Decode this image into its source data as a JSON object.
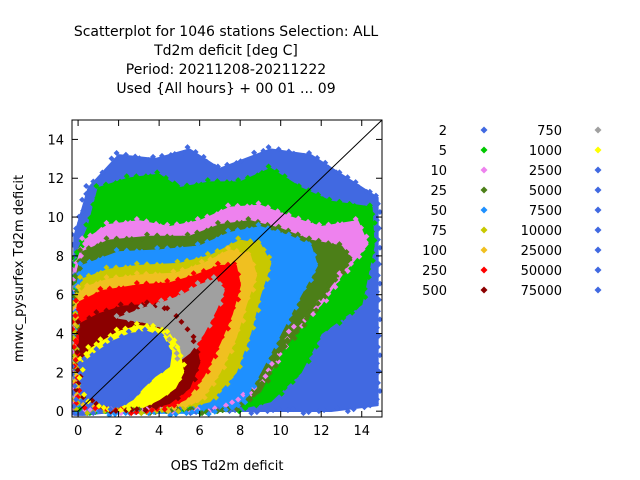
{
  "chart_data": {
    "type": "scatter",
    "title_lines": [
      "Scatterplot for 1046 stations Selection: ALL",
      "Td2m deficit [deg C]",
      "Period: 20211208-20211222",
      "Used {All hours} + 00 01 ... 09"
    ],
    "xlabel": "OBS Td2m deficit",
    "ylabel": "mnwc_pysurfex Td2m deficit",
    "xlim": [
      -0.3,
      15
    ],
    "ylim": [
      -0.3,
      15
    ],
    "xticks": [
      0,
      2,
      4,
      6,
      8,
      10,
      12,
      14
    ],
    "yticks": [
      0,
      2,
      4,
      6,
      8,
      10,
      12,
      14
    ],
    "diagonal": true,
    "legend_placement": "right",
    "legend": [
      {
        "label": "2",
        "color": "#4169e1"
      },
      {
        "label": "5",
        "color": "#00c800"
      },
      {
        "label": "10",
        "color": "#ee82ee"
      },
      {
        "label": "25",
        "color": "#4c7f18"
      },
      {
        "label": "50",
        "color": "#1e90ff"
      },
      {
        "label": "75",
        "color": "#c8c800"
      },
      {
        "label": "100",
        "color": "#f0c020"
      },
      {
        "label": "250",
        "color": "#ff0000"
      },
      {
        "label": "500",
        "color": "#8b0000"
      },
      {
        "label": "750",
        "color": "#a0a0a0"
      },
      {
        "label": "1000",
        "color": "#ffff00"
      },
      {
        "label": "2500",
        "color": "#4169e1"
      },
      {
        "label": "5000",
        "color": "#4169e1"
      },
      {
        "label": "7500",
        "color": "#4169e1"
      },
      {
        "label": "10000",
        "color": "#4169e1"
      },
      {
        "label": "25000",
        "color": "#4169e1"
      },
      {
        "label": "50000",
        "color": "#4169e1"
      },
      {
        "label": "75000",
        "color": "#4169e1"
      }
    ],
    "density_regions": [
      {
        "class": "2",
        "color": "#4169e1",
        "polygon": [
          [
            2.0,
            13.2
          ],
          [
            3.8,
            13.0
          ],
          [
            5.5,
            13.5
          ],
          [
            7.0,
            12.5
          ],
          [
            9.5,
            13.5
          ],
          [
            11.5,
            13.2
          ],
          [
            13.0,
            12.2
          ],
          [
            14.8,
            11.0
          ],
          [
            14.8,
            0.3
          ],
          [
            12.5,
            0.0
          ],
          [
            10.0,
            0.0
          ],
          [
            7.0,
            0.0
          ],
          [
            4.0,
            0.0
          ],
          [
            1.0,
            0.0
          ],
          [
            -0.2,
            0.0
          ],
          [
            -0.2,
            9.0
          ],
          [
            0.5,
            11.5
          ]
        ]
      },
      {
        "class": "5",
        "color": "#00c800",
        "polygon": [
          [
            1.0,
            11.5
          ],
          [
            2.5,
            12.0
          ],
          [
            4.0,
            12.2
          ],
          [
            5.0,
            11.5
          ],
          [
            6.5,
            11.8
          ],
          [
            8.0,
            11.8
          ],
          [
            9.5,
            12.5
          ],
          [
            11.0,
            11.5
          ],
          [
            12.5,
            10.8
          ],
          [
            14.5,
            10.5
          ],
          [
            14.6,
            8.5
          ],
          [
            14.0,
            5.5
          ],
          [
            12.0,
            4.0
          ],
          [
            11.0,
            2.0
          ],
          [
            9.5,
            0.5
          ],
          [
            7.5,
            0.0
          ],
          [
            4.5,
            0.0
          ],
          [
            2.0,
            0.0
          ],
          [
            -0.2,
            0.0
          ],
          [
            -0.2,
            7.8
          ],
          [
            0.5,
            9.5
          ]
        ]
      },
      {
        "class": "10",
        "color": "#ee82ee",
        "polygon": [
          [
            0.3,
            8.8
          ],
          [
            1.5,
            9.6
          ],
          [
            3.0,
            9.8
          ],
          [
            4.5,
            9.5
          ],
          [
            6.0,
            9.8
          ],
          [
            7.5,
            10.5
          ],
          [
            9.0,
            10.6
          ],
          [
            10.5,
            10.0
          ],
          [
            12.0,
            9.5
          ],
          [
            13.8,
            9.8
          ],
          [
            14.3,
            8.6
          ],
          [
            13.0,
            7.0
          ],
          [
            12.0,
            5.5
          ],
          [
            10.5,
            4.0
          ],
          [
            9.5,
            2.0
          ],
          [
            8.0,
            0.5
          ],
          [
            6.0,
            0.0
          ],
          [
            3.5,
            0.0
          ],
          [
            1.0,
            0.0
          ],
          [
            -0.2,
            0.0
          ],
          [
            -0.2,
            7.2
          ]
        ]
      },
      {
        "class": "25",
        "color": "#4c7f18",
        "polygon": [
          [
            0.2,
            8.2
          ],
          [
            1.5,
            8.8
          ],
          [
            3.5,
            9.0
          ],
          [
            5.5,
            9.0
          ],
          [
            7.0,
            9.6
          ],
          [
            8.5,
            9.8
          ],
          [
            10.0,
            9.4
          ],
          [
            11.5,
            8.8
          ],
          [
            13.0,
            8.5
          ],
          [
            13.5,
            7.8
          ],
          [
            12.5,
            6.5
          ],
          [
            11.5,
            5.0
          ],
          [
            10.0,
            3.0
          ],
          [
            9.0,
            1.0
          ],
          [
            7.5,
            0.0
          ],
          [
            5.0,
            0.0
          ],
          [
            2.0,
            0.0
          ],
          [
            0.0,
            0.0
          ],
          [
            -0.2,
            6.5
          ]
        ]
      },
      {
        "class": "50",
        "color": "#1e90ff",
        "polygon": [
          [
            0.2,
            7.5
          ],
          [
            2.0,
            8.2
          ],
          [
            4.0,
            8.3
          ],
          [
            6.0,
            8.5
          ],
          [
            7.5,
            9.2
          ],
          [
            9.0,
            9.5
          ],
          [
            10.5,
            9.0
          ],
          [
            11.5,
            8.5
          ],
          [
            11.8,
            7.5
          ],
          [
            11.0,
            6.0
          ],
          [
            10.0,
            4.0
          ],
          [
            9.0,
            2.0
          ],
          [
            8.0,
            0.2
          ],
          [
            6.0,
            -0.1
          ],
          [
            3.0,
            -0.1
          ],
          [
            0.0,
            -0.1
          ],
          [
            -0.2,
            6.0
          ]
        ]
      },
      {
        "class": "75",
        "color": "#c8c800",
        "polygon": [
          [
            0.2,
            6.8
          ],
          [
            1.5,
            7.3
          ],
          [
            3.0,
            7.5
          ],
          [
            5.0,
            7.6
          ],
          [
            6.5,
            8.0
          ],
          [
            8.0,
            8.8
          ],
          [
            9.0,
            8.6
          ],
          [
            9.5,
            7.6
          ],
          [
            9.0,
            6.0
          ],
          [
            8.5,
            4.0
          ],
          [
            7.8,
            2.0
          ],
          [
            6.5,
            0.5
          ],
          [
            4.5,
            0.0
          ],
          [
            2.0,
            0.0
          ],
          [
            0.0,
            0.0
          ],
          [
            -0.2,
            5.5
          ]
        ]
      },
      {
        "class": "100",
        "color": "#f0c020",
        "polygon": [
          [
            0.1,
            6.3
          ],
          [
            1.5,
            6.8
          ],
          [
            3.0,
            7.0
          ],
          [
            4.8,
            7.1
          ],
          [
            6.2,
            7.6
          ],
          [
            7.5,
            8.3
          ],
          [
            8.5,
            8.0
          ],
          [
            8.8,
            7.0
          ],
          [
            8.3,
            5.5
          ],
          [
            7.8,
            3.8
          ],
          [
            7.0,
            2.0
          ],
          [
            6.0,
            0.5
          ],
          [
            4.0,
            0.0
          ],
          [
            1.5,
            0.0
          ],
          [
            -0.1,
            0.5
          ],
          [
            -0.2,
            5.2
          ]
        ]
      },
      {
        "class": "250",
        "color": "#ff0000",
        "polygon": [
          [
            0.0,
            5.6
          ],
          [
            1.2,
            6.2
          ],
          [
            3.0,
            6.5
          ],
          [
            4.5,
            6.6
          ],
          [
            5.8,
            7.0
          ],
          [
            7.0,
            7.5
          ],
          [
            7.8,
            7.5
          ],
          [
            8.0,
            6.5
          ],
          [
            7.6,
            5.0
          ],
          [
            7.0,
            3.5
          ],
          [
            6.2,
            1.8
          ],
          [
            5.3,
            0.6
          ],
          [
            4.0,
            0.0
          ],
          [
            1.5,
            0.0
          ],
          [
            0.0,
            0.3
          ],
          [
            -0.2,
            4.5
          ]
        ]
      },
      {
        "class": "500",
        "color": "#8b0000",
        "polygon": [
          [
            0.1,
            4.5
          ],
          [
            1.0,
            5.0
          ],
          [
            2.2,
            5.4
          ],
          [
            3.5,
            5.5
          ],
          [
            4.5,
            5.2
          ],
          [
            5.2,
            4.5
          ],
          [
            5.8,
            3.5
          ],
          [
            6.0,
            2.5
          ],
          [
            5.5,
            1.2
          ],
          [
            4.5,
            0.4
          ],
          [
            3.0,
            0.0
          ],
          [
            1.2,
            0.1
          ],
          [
            0.0,
            1.0
          ]
        ]
      },
      {
        "class": "750",
        "color": "#a0a0a0",
        "polygon": [
          [
            2.0,
            4.8
          ],
          [
            3.2,
            5.3
          ],
          [
            4.2,
            5.6
          ],
          [
            5.2,
            6.0
          ],
          [
            6.0,
            6.5
          ],
          [
            6.8,
            6.8
          ],
          [
            7.2,
            6.2
          ],
          [
            6.8,
            5.2
          ],
          [
            6.2,
            4.0
          ],
          [
            5.5,
            3.0
          ],
          [
            5.0,
            2.6
          ],
          [
            4.6,
            3.6
          ],
          [
            4.2,
            4.3
          ],
          [
            3.2,
            4.6
          ]
        ]
      },
      {
        "class": "1000",
        "color": "#ffff00",
        "polygon": [
          [
            0.2,
            2.6
          ],
          [
            0.6,
            3.2
          ],
          [
            1.2,
            3.6
          ],
          [
            2.0,
            4.1
          ],
          [
            3.0,
            4.4
          ],
          [
            3.8,
            4.3
          ],
          [
            4.5,
            4.0
          ],
          [
            5.0,
            3.2
          ],
          [
            5.2,
            2.0
          ],
          [
            4.8,
            1.2
          ],
          [
            4.0,
            0.6
          ],
          [
            3.2,
            0.2
          ],
          [
            2.6,
            0.0
          ],
          [
            1.6,
            0.0
          ],
          [
            0.6,
            0.4
          ],
          [
            0.0,
            1.2
          ]
        ]
      },
      {
        "class": "2500",
        "color": "#4169e1",
        "polygon": [
          [
            -0.2,
            -0.2
          ],
          [
            -0.2,
            2.2
          ],
          [
            0.4,
            2.6
          ],
          [
            1.0,
            3.1
          ],
          [
            1.7,
            3.6
          ],
          [
            2.6,
            4.0
          ],
          [
            3.4,
            4.1
          ],
          [
            4.2,
            3.8
          ],
          [
            4.6,
            3.0
          ],
          [
            4.5,
            2.3
          ],
          [
            3.8,
            1.8
          ],
          [
            3.2,
            1.2
          ],
          [
            2.7,
            0.6
          ],
          [
            2.0,
            0.2
          ],
          [
            1.2,
            -0.1
          ],
          [
            0.3,
            -0.2
          ]
        ]
      }
    ]
  }
}
